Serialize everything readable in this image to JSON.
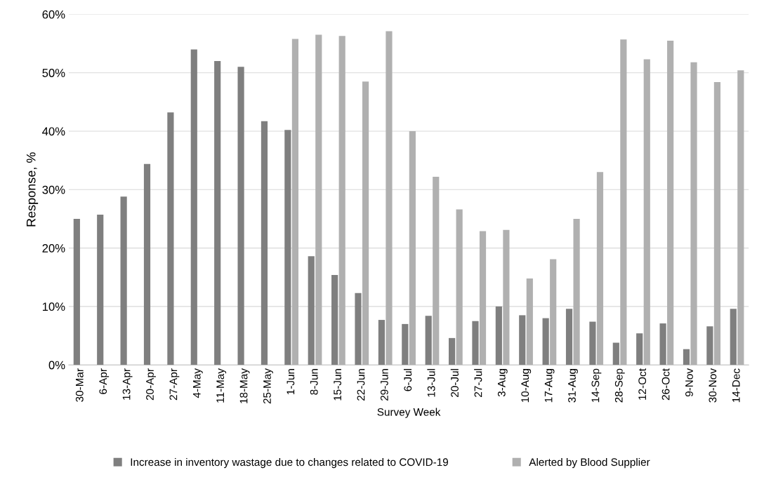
{
  "chart_data": {
    "type": "bar",
    "xlabel": "Survey Week",
    "ylabel": "Response, %",
    "categories": [
      "30-Mar",
      "6-Apr",
      "13-Apr",
      "20-Apr",
      "27-Apr",
      "4-May",
      "11-May",
      "18-May",
      "25-May",
      "1-Jun",
      "8-Jun",
      "15-Jun",
      "22-Jun",
      "29-Jun",
      "6-Jul",
      "13-Jul",
      "20-Jul",
      "27-Jul",
      "3-Aug",
      "10-Aug",
      "17-Aug",
      "31-Aug",
      "14-Sep",
      "28-Sep",
      "12-Oct",
      "26-Oct",
      "9-Nov",
      "30-Nov",
      "14-Dec"
    ],
    "series": [
      {
        "name": "Increase in inventory wastage due to changes related to COVID-19",
        "color": "#7f7f7f",
        "values": [
          25,
          25.7,
          28.8,
          34.4,
          43.2,
          54,
          52,
          51,
          41.7,
          40.2,
          18.6,
          15.4,
          12.3,
          7.7,
          7,
          8.4,
          4.6,
          7.5,
          10,
          8.5,
          8,
          9.6,
          7.4,
          3.8,
          5.4,
          7.1,
          2.7,
          6.6,
          9.6
        ]
      },
      {
        "name": "Alerted by Blood Supplier",
        "color": "#b0b0b0",
        "values": [
          null,
          null,
          null,
          null,
          null,
          null,
          null,
          null,
          null,
          55.8,
          56.5,
          56.3,
          48.5,
          57.1,
          40,
          32.2,
          26.6,
          22.9,
          23.1,
          14.8,
          18.1,
          25,
          33,
          55.7,
          52.3,
          55.5,
          51.8,
          48.4,
          50.4
        ]
      }
    ],
    "ylim": [
      0,
      60
    ],
    "yticks": [
      {
        "value": 0,
        "label": "0%"
      },
      {
        "value": 10,
        "label": "10%"
      },
      {
        "value": 20,
        "label": "20%"
      },
      {
        "value": 30,
        "label": "30%"
      },
      {
        "value": 40,
        "label": "40%"
      },
      {
        "value": 50,
        "label": "50%"
      },
      {
        "value": 60,
        "label": "60%"
      }
    ],
    "grid": "y",
    "legend": "bottom"
  }
}
